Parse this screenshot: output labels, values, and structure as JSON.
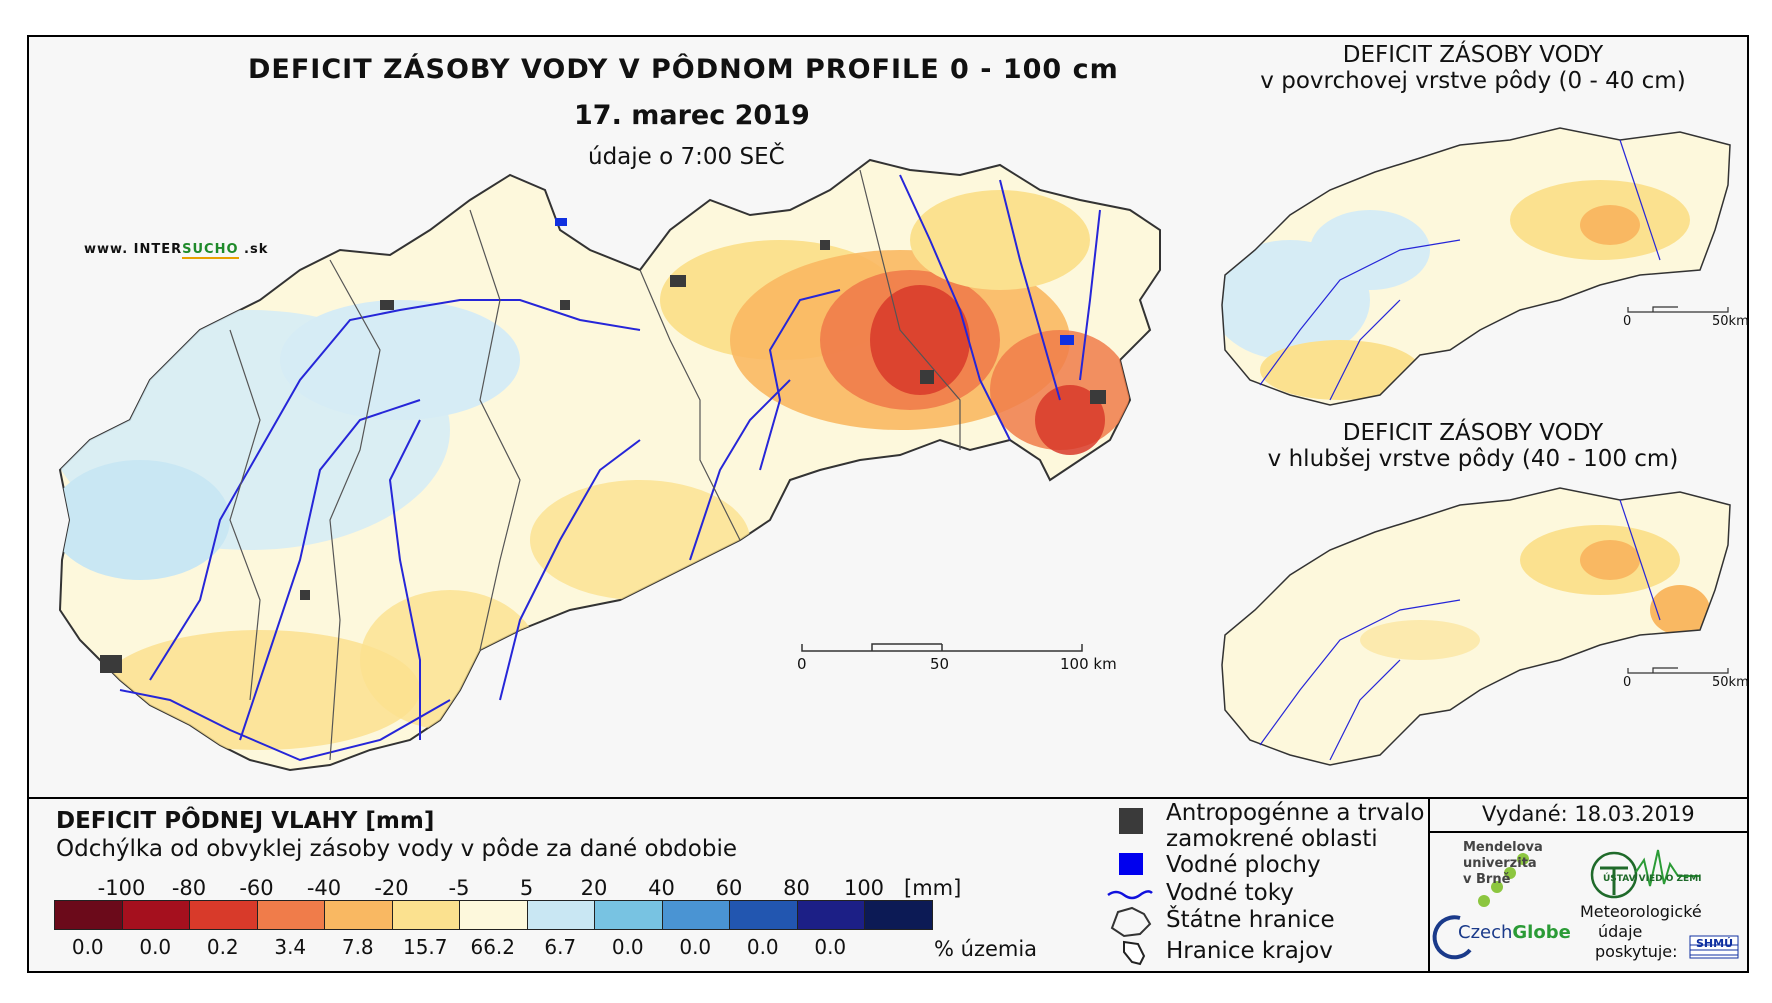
{
  "map": {
    "title": "DEFICIT ZÁSOBY VODY V PÔDNOM PROFILE 0 - 100 cm",
    "date": "17. marec 2019",
    "time_note": "údaje o 7:00 SEČ",
    "website_prefix": "www. INTER",
    "website_highlight": "SUCHO",
    "website_suffix": " .sk",
    "scale": {
      "ticks": [
        "0",
        "50",
        "100 km"
      ]
    }
  },
  "insets": [
    {
      "title": "DEFICIT ZÁSOBY VODY",
      "subtitle": "v povrchovej vrstve pôdy (0 - 40 cm)",
      "scale": [
        "0",
        "50km"
      ]
    },
    {
      "title": "DEFICIT ZÁSOBY VODY",
      "subtitle": "v hlubšej vrstve pôdy (40 - 100 cm)",
      "scale": [
        "0",
        "50km"
      ]
    }
  ],
  "legend": {
    "title": "DEFICIT PÔDNEJ VLAHY [mm]",
    "subtitle": "Odchýlka od obvyklej zásoby vody v pôde za dané obdobie",
    "boundaries": [
      "-100",
      "-80",
      "-60",
      "-40",
      "-20",
      "-5",
      "5",
      "20",
      "40",
      "60",
      "80",
      "100"
    ],
    "unit": "[mm]",
    "colors": [
      "#6b0a1a",
      "#a5101e",
      "#d83a2a",
      "#f07c4a",
      "#f9b862",
      "#fbe18f",
      "#fdf8dc",
      "#c9e7f3",
      "#78c3e2",
      "#4a94d3",
      "#2256b0",
      "#1c1f86",
      "#0c1a55"
    ],
    "percent_area": [
      "0.0",
      "0.0",
      "0.2",
      "3.4",
      "7.8",
      "15.7",
      "66.2",
      "6.7",
      "0.0",
      "0.0",
      "0.0",
      "0.0"
    ],
    "percent_label": "% územia"
  },
  "key": {
    "anthropogenic": "Antropogénne a trvalo",
    "anthropogenic2": "zamokrené oblasti",
    "water_bodies": "Vodné plochy",
    "rivers": "Vodné toky",
    "state_border": "Štátne hranice",
    "region_border": "Hranice krajov"
  },
  "issued": "Vydané: 18.03.2019",
  "logos": {
    "mendel": [
      "Mendelova",
      "univerzita",
      "v Brně"
    ],
    "czechglobe_a": "Czech",
    "czechglobe_b": "Globe",
    "uvz": "ÚSTAV VIED O ZEMI",
    "meteo": [
      "Meteorologické",
      "údaje",
      "poskytuje:"
    ],
    "shmu": "SHMÚ"
  }
}
